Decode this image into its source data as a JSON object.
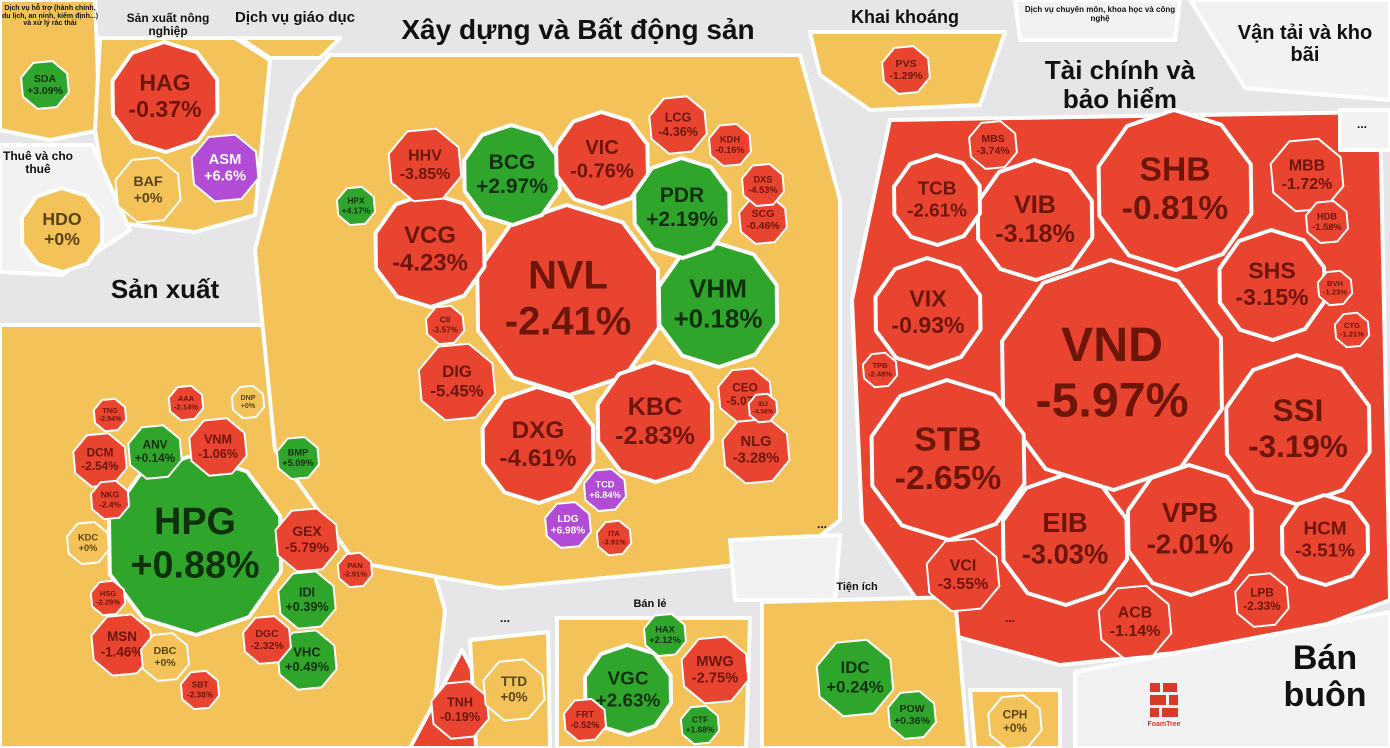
{
  "chart_data": {
    "type": "treemap",
    "watermark": "FoamTree",
    "groups": [
      {
        "name": "Dịch vụ hỗ trợ (hành chính, du lịch, an ninh, kiểm định...) và xử lý rác thải",
        "categories": [
          "SDA"
        ],
        "values": [
          3.09
        ],
        "value_labels": [
          "+3.09%"
        ],
        "colors": [
          "#2fa52c"
        ]
      },
      {
        "name": "Sản xuất nông nghiệp",
        "categories": [
          "HAG",
          "ASM",
          "BAF"
        ],
        "values": [
          -0.37,
          6.6,
          0
        ],
        "value_labels": [
          "-0.37%",
          "+6.6%",
          "+0%"
        ],
        "colors": [
          "#e8442f",
          "#b24bd6",
          "#f3c35a"
        ]
      },
      {
        "name": "Dịch vụ giáo dục"
      },
      {
        "name": "Thuê và cho thuê",
        "categories": [
          "HDO"
        ],
        "values": [
          0
        ],
        "value_labels": [
          "+0%"
        ],
        "colors": [
          "#f3c35a"
        ]
      },
      {
        "name": "Sản xuất",
        "categories": [
          "HPG",
          "ANV",
          "VNM",
          "DCM",
          "GEX",
          "IDI",
          "VHC",
          "MSN",
          "DBC",
          "DGC",
          "KDC",
          "BMP",
          "NKG",
          "AAA",
          "DNP",
          "SBT",
          "TNG",
          "PAN",
          "HSG"
        ],
        "values": [
          0.88,
          0.14,
          -1.06,
          -2.54,
          -5.79,
          0.39,
          0.49,
          -1.46,
          0,
          -2.32,
          0,
          5.09,
          -2.4,
          -2.14,
          0,
          -2.38,
          -2.94,
          -2.91,
          -2.29
        ],
        "value_labels": [
          "+0.88%",
          "+0.14%",
          "-1.06%",
          "-2.54%",
          "-5.79%",
          "+0.39%",
          "+0.49%",
          "-1.46%",
          "+0%",
          "-2.32%",
          "+0%",
          "+5.09%",
          "-2.4%",
          "-2.14%",
          "+0%",
          "-2.38%",
          "-2.94%",
          "-2.91%",
          "-2.29%"
        ],
        "colors": [
          "#2fa52c",
          "#2fa52c",
          "#e8442f",
          "#e8442f",
          "#e8442f",
          "#2fa52c",
          "#2fa52c",
          "#e8442f",
          "#f3c35a",
          "#e8442f",
          "#f3c35a",
          "#2fa52c",
          "#e8442f",
          "#e8442f",
          "#f3c35a",
          "#e8442f",
          "#e8442f",
          "#e8442f",
          "#e8442f"
        ]
      },
      {
        "name": "Xây dựng và Bất động sản",
        "categories": [
          "NVL",
          "VHM",
          "KBC",
          "DXG",
          "VCG",
          "BCG",
          "PDR",
          "VIC",
          "HHV",
          "DIG",
          "LCG",
          "NLG",
          "CEO",
          "SCG",
          "DXS",
          "KDH",
          "LDG",
          "TCD",
          "HPX",
          "CII",
          "ITA",
          "IDJ"
        ],
        "values": [
          -2.41,
          0.18,
          -2.83,
          -4.61,
          -4.23,
          2.97,
          2.19,
          -0.76,
          -3.85,
          -5.45,
          -4.36,
          -3.28,
          -5.07,
          -0.46,
          -4.53,
          -0.16,
          6.98,
          6.84,
          4.17,
          -3.57,
          -3.91,
          -4.58
        ],
        "value_labels": [
          "-2.41%",
          "+0.18%",
          "-2.83%",
          "-4.61%",
          "-4.23%",
          "+2.97%",
          "+2.19%",
          "-0.76%",
          "-3.85%",
          "-5.45%",
          "-4.36%",
          "-3.28%",
          "-5.07%",
          "-0.46%",
          "-4.53%",
          "-0.16%",
          "+6.98%",
          "+6.84%",
          "+4.17%",
          "-3.57%",
          "-3.91%",
          "-4.58%"
        ],
        "colors": [
          "#e8442f",
          "#2fa52c",
          "#e8442f",
          "#e8442f",
          "#e8442f",
          "#2fa52c",
          "#2fa52c",
          "#e8442f",
          "#e8442f",
          "#e8442f",
          "#e8442f",
          "#e8442f",
          "#e8442f",
          "#e8442f",
          "#e8442f",
          "#e8442f",
          "#b24bd6",
          "#b24bd6",
          "#2fa52c",
          "#e8442f",
          "#e8442f",
          "#e8442f"
        ]
      },
      {
        "name": "Khai khoáng",
        "categories": [
          "PVS"
        ],
        "values": [
          -1.29
        ],
        "value_labels": [
          "-1.29%"
        ],
        "colors": [
          "#e8442f"
        ]
      },
      {
        "name": "Dịch vụ chuyên môn, khoa học và công nghệ"
      },
      {
        "name": "Vận tải và kho bãi"
      },
      {
        "name": "Tài chính và bảo hiểm",
        "categories": [
          "VND",
          "STB",
          "SHB",
          "SSI",
          "EIB",
          "VPB",
          "VIB",
          "VIX",
          "SHS",
          "TCB",
          "HCM",
          "ACB",
          "VCI",
          "MBB",
          "MBS",
          "LPB",
          "HDB",
          "TPB",
          "BVH",
          "CTG"
        ],
        "values": [
          -5.97,
          -2.65,
          -0.81,
          -3.19,
          -3.03,
          -2.01,
          -3.18,
          -0.93,
          -3.15,
          -2.61,
          -3.51,
          -1.14,
          -3.55,
          -1.72,
          -3.74,
          -2.33,
          -1.58,
          -2.48,
          -1.23,
          -1.21
        ],
        "value_labels": [
          "-5.97%",
          "-2.65%",
          "-0.81%",
          "-3.19%",
          "-3.03%",
          "-2.01%",
          "-3.18%",
          "-0.93%",
          "-3.15%",
          "-2.61%",
          "-3.51%",
          "-1.14%",
          "-3.55%",
          "-1.72%",
          "-3.74%",
          "-2.33%",
          "-1.58%",
          "-2.48%",
          "-1.23%",
          "-1.21%"
        ],
        "colors": [
          "#e8442f",
          "#e8442f",
          "#e8442f",
          "#e8442f",
          "#e8442f",
          "#e8442f",
          "#e8442f",
          "#e8442f",
          "#e8442f",
          "#e8442f",
          "#e8442f",
          "#e8442f",
          "#e8442f",
          "#e8442f",
          "#e8442f",
          "#e8442f",
          "#e8442f",
          "#e8442f",
          "#e8442f",
          "#e8442f"
        ]
      },
      {
        "name": "Tiện ích",
        "categories": [
          "IDC",
          "POW"
        ],
        "values": [
          0.24,
          0.36
        ],
        "value_labels": [
          "+0.24%",
          "+0.36%"
        ],
        "colors": [
          "#2fa52c",
          "#2fa52c"
        ]
      },
      {
        "name": "Bán lẻ",
        "categories": [
          "VGC",
          "MWG",
          "HAX",
          "FRT",
          "CTF"
        ],
        "values": [
          2.63,
          -2.75,
          2.12,
          -0.52,
          1.68
        ],
        "value_labels": [
          "+2.63%",
          "-2.75%",
          "+2.12%",
          "-0.52%",
          "+1.68%"
        ],
        "colors": [
          "#2fa52c",
          "#e8442f",
          "#2fa52c",
          "#e8442f",
          "#2fa52c"
        ]
      },
      {
        "categories": [
          "TNH"
        ],
        "values": [
          -0.19
        ],
        "value_labels": [
          "-0.19%"
        ],
        "colors": [
          "#e8442f"
        ]
      },
      {
        "name": "...",
        "categories": [
          "TTD"
        ],
        "values": [
          0
        ],
        "value_labels": [
          "+0%"
        ],
        "colors": [
          "#f3c35a"
        ]
      },
      {
        "name": "...",
        "categories": [
          "CPH"
        ],
        "values": [
          0
        ],
        "value_labels": [
          "+0%"
        ],
        "colors": [
          "#f3c35a"
        ]
      },
      {
        "name": "Bán buôn"
      },
      {
        "name": "..."
      },
      {
        "name": "..."
      }
    ]
  }
}
